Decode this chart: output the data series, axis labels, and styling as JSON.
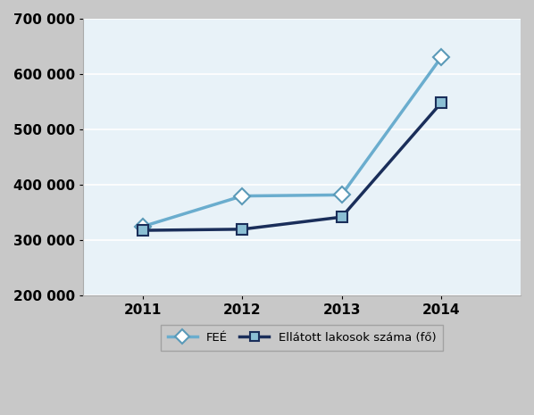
{
  "years": [
    2011,
    2012,
    2013,
    2014
  ],
  "fee_values": [
    325000,
    380000,
    382000,
    630000
  ],
  "ellat_values": [
    318000,
    320000,
    342000,
    548000
  ],
  "fee_line_color": "#6aadce",
  "fee_marker_face": "white",
  "fee_marker_edge": "#5a9ab8",
  "ellat_line_color": "#1a2e5a",
  "ellat_marker_face": "#8bbfd4",
  "ellat_marker_edge": "#1a2e5a",
  "fee_label": "FEÉ",
  "ellat_label": "Ellátott lakosok száma (fő)",
  "ylim": [
    200000,
    700000
  ],
  "yticks": [
    200000,
    300000,
    400000,
    500000,
    600000,
    700000
  ],
  "outer_bg": "#c8c8c8",
  "plot_bg": "#e8f2f8",
  "grid_color": "#ffffff",
  "tick_label_fontsize": 11,
  "tick_label_fontweight": "bold",
  "legend_fontsize": 9.5
}
